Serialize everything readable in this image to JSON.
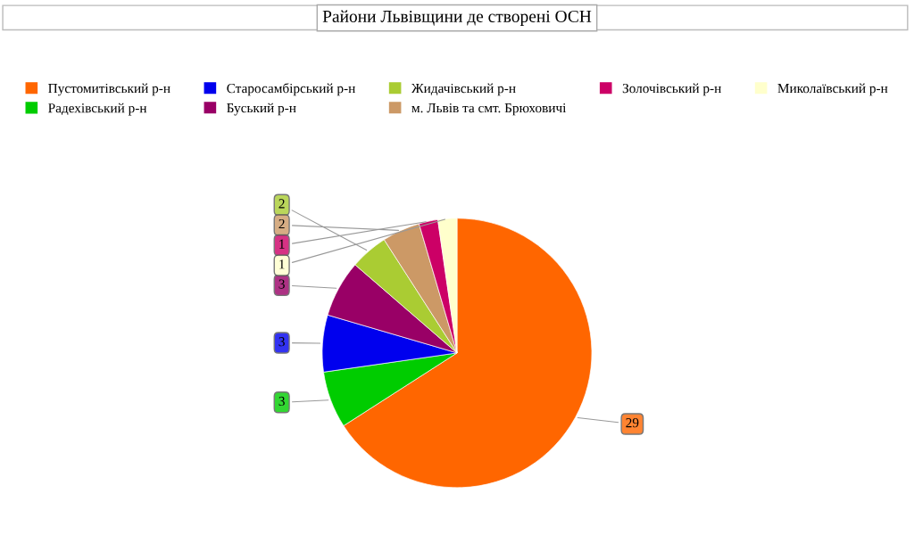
{
  "chart_data": {
    "type": "pie",
    "title": "Райони Львівщини де створені ОСН",
    "categories": [
      "Пустомитівський р-н",
      "Радехівський р-н",
      "Старосамбірський р-н",
      "Буський р-н",
      "Жидачівський р-н",
      "м. Львів та смт. Брюховичі",
      "Золочівський р-н",
      "Миколаївський р-н"
    ],
    "values": [
      29,
      3,
      3,
      3,
      2,
      2,
      1,
      1
    ],
    "colors": [
      "#ff6600",
      "#00cc00",
      "#0000ee",
      "#990066",
      "#aacc33",
      "#cc9966",
      "#cc0066",
      "#ffffcc"
    ],
    "data_labels": true,
    "legend": "top"
  }
}
